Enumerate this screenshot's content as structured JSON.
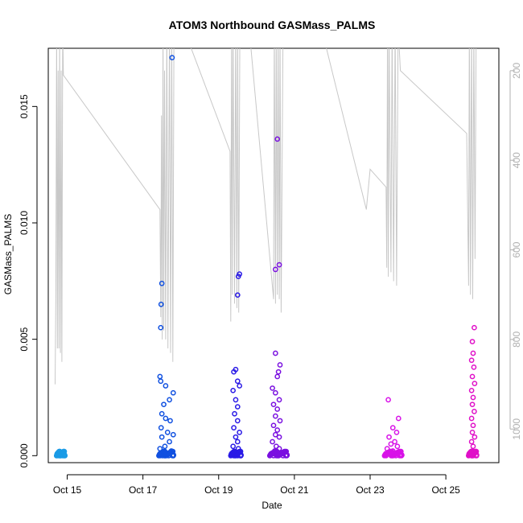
{
  "chart_data": {
    "type": "scatter",
    "title": "ATOM3 Northbound GASMass_PALMS",
    "xlabel": "Date",
    "ylabel": "GASMass_PALMS",
    "x_range_days": [
      14.5,
      26.4
    ],
    "ylim": [
      -0.0003,
      0.0175
    ],
    "y2lim": [
      1075,
      150
    ],
    "x_ticks": [
      {
        "label": "Oct 15",
        "day": 15
      },
      {
        "label": "Oct 17",
        "day": 17
      },
      {
        "label": "Oct 19",
        "day": 19
      },
      {
        "label": "Oct 21",
        "day": 21
      },
      {
        "label": "Oct 23",
        "day": 23
      },
      {
        "label": "Oct 25",
        "day": 25
      }
    ],
    "y_ticks": [
      {
        "label": "0.000",
        "value": 0.0
      },
      {
        "label": "0.005",
        "value": 0.005
      },
      {
        "label": "0.010",
        "value": 0.01
      },
      {
        "label": "0.015",
        "value": 0.015
      }
    ],
    "y2_ticks": [
      {
        "label": "200",
        "value": 200
      },
      {
        "label": "400",
        "value": 400
      },
      {
        "label": "600",
        "value": 600
      },
      {
        "label": "800",
        "value": 800
      },
      {
        "label": "1000",
        "value": 1000
      }
    ],
    "colors": {
      "group1": "#1a9be6",
      "group2": "#1050e0",
      "group3": "#2a1ae6",
      "group4": "#7a10e0",
      "group5": "#d812e8",
      "group6": "#e010c8",
      "pressure_line": "#c8c8c8"
    },
    "series": [
      {
        "x_start": 14.72,
        "x_end": 14.94,
        "color_key": "group1",
        "points": [
          [
            14.72,
            0.0
          ],
          [
            14.75,
            0.0
          ],
          [
            14.78,
            0.0
          ],
          [
            14.8,
            5e-05
          ],
          [
            14.82,
            0.0
          ],
          [
            14.85,
            5e-05
          ],
          [
            14.87,
            0.0
          ],
          [
            14.9,
            0.0
          ],
          [
            14.92,
            5e-05
          ],
          [
            14.94,
            0.0
          ]
        ]
      },
      {
        "x_start": 17.42,
        "x_end": 17.82,
        "color_key": "group2",
        "points": [
          [
            17.5,
            0.0074
          ],
          [
            17.48,
            0.0065
          ],
          [
            17.47,
            0.0055
          ],
          [
            17.77,
            0.0171
          ],
          [
            17.45,
            0.0034
          ],
          [
            17.47,
            0.0032
          ],
          [
            17.6,
            0.003
          ],
          [
            17.8,
            0.0027
          ],
          [
            17.7,
            0.0024
          ],
          [
            17.55,
            0.0022
          ],
          [
            17.5,
            0.0018
          ],
          [
            17.6,
            0.0016
          ],
          [
            17.72,
            0.0015
          ],
          [
            17.48,
            0.0012
          ],
          [
            17.65,
            0.001
          ],
          [
            17.8,
            0.0009
          ],
          [
            17.5,
            0.0008
          ],
          [
            17.7,
            0.0006
          ],
          [
            17.58,
            0.0004
          ],
          [
            17.45,
            0.0003
          ],
          [
            17.75,
            0.0002
          ],
          [
            17.62,
            0.0001
          ],
          [
            17.52,
            0.0
          ],
          [
            17.68,
            0.0
          ],
          [
            17.8,
            0.0
          ],
          [
            17.45,
            0.0
          ],
          [
            17.58,
            0.0
          ]
        ]
      },
      {
        "x_start": 19.32,
        "x_end": 19.6,
        "color_key": "group3",
        "points": [
          [
            19.55,
            0.0078
          ],
          [
            19.52,
            0.0077
          ],
          [
            19.5,
            0.0069
          ],
          [
            19.45,
            0.0037
          ],
          [
            19.4,
            0.0036
          ],
          [
            19.5,
            0.0032
          ],
          [
            19.55,
            0.003
          ],
          [
            19.38,
            0.0028
          ],
          [
            19.45,
            0.0024
          ],
          [
            19.5,
            0.0021
          ],
          [
            19.42,
            0.0018
          ],
          [
            19.5,
            0.0015
          ],
          [
            19.4,
            0.0012
          ],
          [
            19.55,
            0.001
          ],
          [
            19.45,
            0.0008
          ],
          [
            19.5,
            0.0006
          ],
          [
            19.38,
            0.0004
          ],
          [
            19.52,
            0.0003
          ],
          [
            19.45,
            0.0001
          ],
          [
            19.4,
            0.0
          ],
          [
            19.5,
            0.0
          ],
          [
            19.58,
            0.0
          ]
        ]
      },
      {
        "x_start": 20.35,
        "x_end": 20.82,
        "color_key": "group4",
        "points": [
          [
            20.55,
            0.0136
          ],
          [
            20.6,
            0.0082
          ],
          [
            20.5,
            0.008
          ],
          [
            20.5,
            0.0044
          ],
          [
            20.62,
            0.0039
          ],
          [
            20.58,
            0.0036
          ],
          [
            20.55,
            0.0034
          ],
          [
            20.42,
            0.0029
          ],
          [
            20.5,
            0.0027
          ],
          [
            20.6,
            0.0024
          ],
          [
            20.45,
            0.0022
          ],
          [
            20.55,
            0.002
          ],
          [
            20.5,
            0.0017
          ],
          [
            20.62,
            0.0015
          ],
          [
            20.45,
            0.0013
          ],
          [
            20.55,
            0.0011
          ],
          [
            20.5,
            0.0009
          ],
          [
            20.6,
            0.0008
          ],
          [
            20.42,
            0.0006
          ],
          [
            20.52,
            0.0004
          ],
          [
            20.6,
            0.0003
          ],
          [
            20.48,
            0.0002
          ],
          [
            20.55,
            0.0001
          ],
          [
            20.45,
            0.0
          ],
          [
            20.58,
            0.0
          ],
          [
            20.7,
            0.0
          ]
        ]
      },
      {
        "x_start": 23.38,
        "x_end": 23.85,
        "color_key": "group5",
        "points": [
          [
            23.48,
            0.0024
          ],
          [
            23.75,
            0.0016
          ],
          [
            23.6,
            0.0012
          ],
          [
            23.7,
            0.001
          ],
          [
            23.5,
            0.0008
          ],
          [
            23.65,
            0.0006
          ],
          [
            23.55,
            0.0005
          ],
          [
            23.72,
            0.0004
          ],
          [
            23.45,
            0.0003
          ],
          [
            23.6,
            0.0002
          ],
          [
            23.5,
            0.0001
          ],
          [
            23.68,
            0.0
          ],
          [
            23.42,
            0.0
          ],
          [
            23.58,
            0.0
          ],
          [
            23.78,
            0.0
          ]
        ]
      },
      {
        "x_start": 25.6,
        "x_end": 25.82,
        "color_key": "group6",
        "points": [
          [
            25.75,
            0.0055
          ],
          [
            25.7,
            0.0049
          ],
          [
            25.72,
            0.0044
          ],
          [
            25.68,
            0.0041
          ],
          [
            25.74,
            0.0038
          ],
          [
            25.7,
            0.0034
          ],
          [
            25.76,
            0.0031
          ],
          [
            25.68,
            0.0028
          ],
          [
            25.72,
            0.0025
          ],
          [
            25.7,
            0.0022
          ],
          [
            25.75,
            0.0019
          ],
          [
            25.68,
            0.0016
          ],
          [
            25.72,
            0.0013
          ],
          [
            25.7,
            0.001
          ],
          [
            25.76,
            0.0008
          ],
          [
            25.68,
            0.0006
          ],
          [
            25.72,
            0.0004
          ],
          [
            25.7,
            0.0002
          ],
          [
            25.75,
            0.0001
          ],
          [
            25.68,
            0.0
          ],
          [
            25.72,
            0.0
          ]
        ]
      }
    ],
    "pressure_profile": [
      [
        14.68,
        900
      ],
      [
        14.7,
        700
      ],
      [
        14.72,
        100
      ],
      [
        14.74,
        820
      ],
      [
        14.76,
        200
      ],
      [
        14.78,
        820
      ],
      [
        14.8,
        100
      ],
      [
        14.82,
        830
      ],
      [
        14.84,
        200
      ],
      [
        14.86,
        850
      ],
      [
        14.88,
        100
      ],
      [
        14.9,
        210
      ],
      [
        17.45,
        510
      ],
      [
        17.47,
        750
      ],
      [
        17.49,
        300
      ],
      [
        17.51,
        800
      ],
      [
        17.53,
        100
      ],
      [
        17.55,
        780
      ],
      [
        17.57,
        200
      ],
      [
        17.6,
        800
      ],
      [
        17.63,
        100
      ],
      [
        17.66,
        820
      ],
      [
        17.7,
        100
      ],
      [
        17.73,
        830
      ],
      [
        17.76,
        100
      ],
      [
        17.79,
        850
      ],
      [
        17.82,
        100
      ],
      [
        17.84,
        100
      ],
      [
        18.05,
        100
      ],
      [
        19.3,
        380
      ],
      [
        19.32,
        760
      ],
      [
        19.34,
        100
      ],
      [
        19.36,
        700
      ],
      [
        19.38,
        100
      ],
      [
        19.42,
        720
      ],
      [
        19.45,
        100
      ],
      [
        19.48,
        730
      ],
      [
        19.5,
        100
      ],
      [
        19.53,
        740
      ],
      [
        19.56,
        100
      ],
      [
        19.6,
        100
      ],
      [
        19.8,
        100
      ],
      [
        20.45,
        710
      ],
      [
        20.47,
        100
      ],
      [
        20.5,
        720
      ],
      [
        20.52,
        100
      ],
      [
        20.55,
        700
      ],
      [
        20.57,
        100
      ],
      [
        20.6,
        710
      ],
      [
        20.62,
        100
      ],
      [
        20.65,
        740
      ],
      [
        20.7,
        100
      ],
      [
        21.7,
        100
      ],
      [
        22.9,
        510
      ],
      [
        23.0,
        420
      ],
      [
        23.42,
        460
      ],
      [
        23.44,
        640
      ],
      [
        23.46,
        100
      ],
      [
        23.48,
        660
      ],
      [
        23.5,
        100
      ],
      [
        23.55,
        650
      ],
      [
        23.58,
        100
      ],
      [
        23.62,
        670
      ],
      [
        23.66,
        100
      ],
      [
        23.7,
        680
      ],
      [
        23.74,
        100
      ],
      [
        23.8,
        200
      ],
      [
        25.55,
        340
      ],
      [
        25.6,
        680
      ],
      [
        25.62,
        100
      ],
      [
        25.65,
        700
      ],
      [
        25.68,
        100
      ],
      [
        25.71,
        710
      ],
      [
        25.74,
        100
      ],
      [
        25.77,
        620
      ],
      [
        25.8,
        100
      ]
    ]
  }
}
